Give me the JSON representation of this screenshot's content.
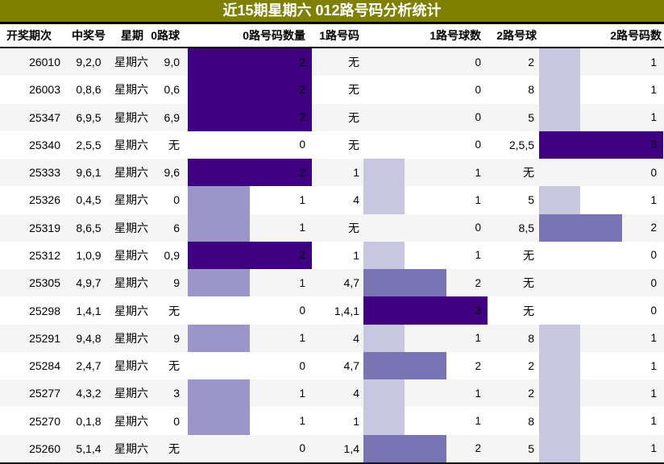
{
  "title": "近15期星期六 012路号码分析统计",
  "colors": {
    "title_bg": "#7f7f00",
    "title_text": "#ffffff",
    "stripe_row": "#f5f5f5",
    "plain_row": "#ffffff",
    "border": "#000000",
    "bar_scale": {
      "third": "#c8c7e2",
      "half": "#9b95c8",
      "two_thirds": "#7974b3",
      "full": "#3e0080"
    }
  },
  "none_label": "无",
  "chart_data": {
    "type": "table",
    "title": "近15期星期六 012路号码分析统计",
    "columns": [
      "开奖期次",
      "中奖号",
      "星期",
      "0路球",
      "0路号码数量",
      "1路号码",
      "1路号球数",
      "2路号球",
      "2路号码数"
    ],
    "bar_columns_note": "columns 0路号码数量/1路号球数/2路号码数 render value as horizontal bar; width = value/column_max of 154px; color darkens with fraction",
    "bar_max": {
      "r0": 2,
      "r1": 3,
      "r2": 3
    },
    "rows": [
      {
        "period": "26010",
        "win": "9,2,0",
        "week": "星期六",
        "r0": "9,0",
        "r0n": 2,
        "r1": "无",
        "r1n": 0,
        "r2": "2",
        "r2n": 1
      },
      {
        "period": "26003",
        "win": "0,8,6",
        "week": "星期六",
        "r0": "0,6",
        "r0n": 2,
        "r1": "无",
        "r1n": 0,
        "r2": "8",
        "r2n": 1
      },
      {
        "period": "25347",
        "win": "6,9,5",
        "week": "星期六",
        "r0": "6,9",
        "r0n": 2,
        "r1": "无",
        "r1n": 0,
        "r2": "5",
        "r2n": 1
      },
      {
        "period": "25340",
        "win": "2,5,5",
        "week": "星期六",
        "r0": "无",
        "r0n": 0,
        "r1": "无",
        "r1n": 0,
        "r2": "2,5,5",
        "r2n": 3
      },
      {
        "period": "25333",
        "win": "9,6,1",
        "week": "星期六",
        "r0": "9,6",
        "r0n": 2,
        "r1": "1",
        "r1n": 1,
        "r2": "无",
        "r2n": 0
      },
      {
        "period": "25326",
        "win": "0,4,5",
        "week": "星期六",
        "r0": "0",
        "r0n": 1,
        "r1": "4",
        "r1n": 1,
        "r2": "5",
        "r2n": 1
      },
      {
        "period": "25319",
        "win": "8,6,5",
        "week": "星期六",
        "r0": "6",
        "r0n": 1,
        "r1": "无",
        "r1n": 0,
        "r2": "8,5",
        "r2n": 2
      },
      {
        "period": "25312",
        "win": "1,0,9",
        "week": "星期六",
        "r0": "0,9",
        "r0n": 2,
        "r1": "1",
        "r1n": 1,
        "r2": "无",
        "r2n": 0
      },
      {
        "period": "25305",
        "win": "4,9,7",
        "week": "星期六",
        "r0": "9",
        "r0n": 1,
        "r1": "4,7",
        "r1n": 2,
        "r2": "无",
        "r2n": 0
      },
      {
        "period": "25298",
        "win": "1,4,1",
        "week": "星期六",
        "r0": "无",
        "r0n": 0,
        "r1": "1,4,1",
        "r1n": 3,
        "r2": "无",
        "r2n": 0
      },
      {
        "period": "25291",
        "win": "9,4,8",
        "week": "星期六",
        "r0": "9",
        "r0n": 1,
        "r1": "4",
        "r1n": 1,
        "r2": "8",
        "r2n": 1
      },
      {
        "period": "25284",
        "win": "2,4,7",
        "week": "星期六",
        "r0": "无",
        "r0n": 0,
        "r1": "4,7",
        "r1n": 2,
        "r2": "2",
        "r2n": 1
      },
      {
        "period": "25277",
        "win": "4,3,2",
        "week": "星期六",
        "r0": "3",
        "r0n": 1,
        "r1": "4",
        "r1n": 1,
        "r2": "2",
        "r2n": 1
      },
      {
        "period": "25270",
        "win": "0,1,8",
        "week": "星期六",
        "r0": "0",
        "r0n": 1,
        "r1": "1",
        "r1n": 1,
        "r2": "8",
        "r2n": 1
      },
      {
        "period": "25260",
        "win": "5,1,4",
        "week": "星期六",
        "r0": "无",
        "r0n": 0,
        "r1": "1,4",
        "r1n": 2,
        "r2": "5",
        "r2n": 1
      }
    ]
  }
}
